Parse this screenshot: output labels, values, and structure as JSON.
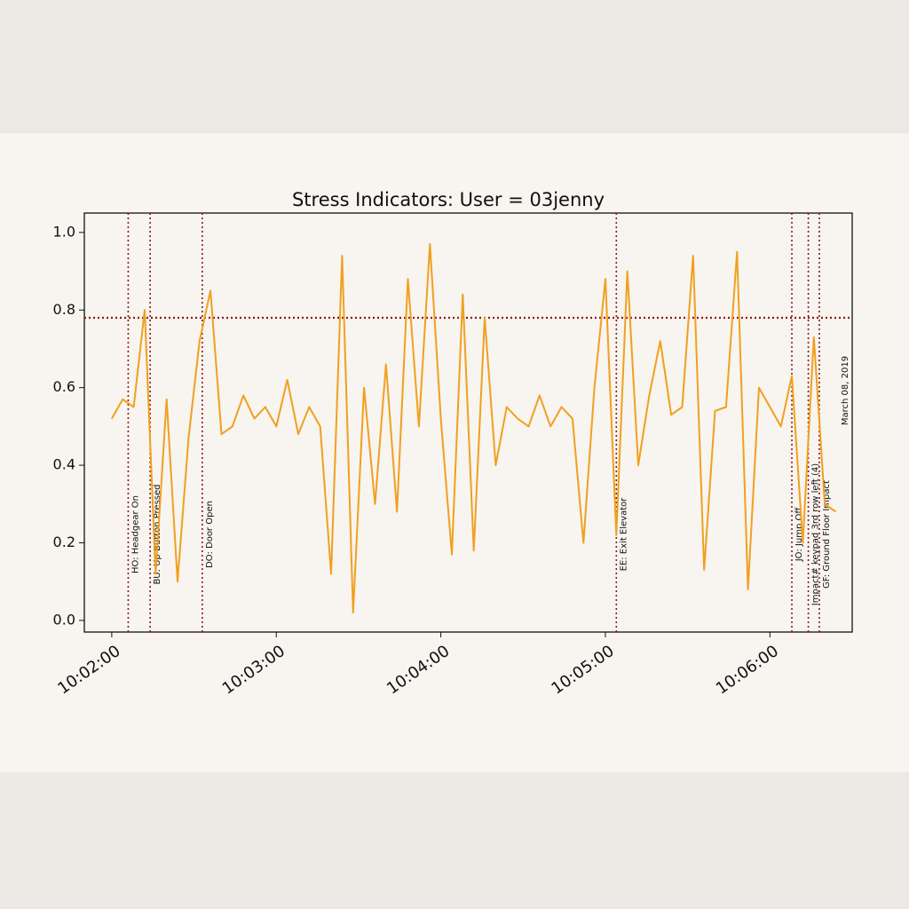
{
  "chart_data": {
    "type": "line",
    "title": "Stress Indicators:  User = 03jenny",
    "side_note": "March 08, 2019",
    "x": [
      "10:02:00",
      "10:02:04",
      "10:02:08",
      "10:02:12",
      "10:02:16",
      "10:02:20",
      "10:02:24",
      "10:02:28",
      "10:02:32",
      "10:02:36",
      "10:02:40",
      "10:02:44",
      "10:02:48",
      "10:02:52",
      "10:02:56",
      "10:03:00",
      "10:03:04",
      "10:03:08",
      "10:03:12",
      "10:03:16",
      "10:03:20",
      "10:03:24",
      "10:03:28",
      "10:03:32",
      "10:03:36",
      "10:03:40",
      "10:03:44",
      "10:03:48",
      "10:03:52",
      "10:03:56",
      "10:04:00",
      "10:04:04",
      "10:04:08",
      "10:04:12",
      "10:04:16",
      "10:04:20",
      "10:04:24",
      "10:04:28",
      "10:04:32",
      "10:04:36",
      "10:04:40",
      "10:04:44",
      "10:04:48",
      "10:04:52",
      "10:04:56",
      "10:05:00",
      "10:05:04",
      "10:05:08",
      "10:05:12",
      "10:05:16",
      "10:05:20",
      "10:05:24",
      "10:05:28",
      "10:05:32",
      "10:05:36",
      "10:05:40",
      "10:05:44",
      "10:05:48",
      "10:05:52",
      "10:05:56",
      "10:06:00",
      "10:06:04",
      "10:06:08",
      "10:06:12",
      "10:06:16",
      "10:06:20",
      "10:06:24"
    ],
    "series": [
      {
        "name": "stress",
        "color": "#f0a020",
        "values": [
          0.52,
          0.57,
          0.55,
          0.8,
          0.12,
          0.57,
          0.1,
          0.47,
          0.72,
          0.85,
          0.48,
          0.5,
          0.58,
          0.52,
          0.55,
          0.5,
          0.62,
          0.48,
          0.55,
          0.5,
          0.12,
          0.94,
          0.02,
          0.6,
          0.3,
          0.66,
          0.28,
          0.88,
          0.5,
          0.97,
          0.52,
          0.17,
          0.84,
          0.18,
          0.78,
          0.4,
          0.55,
          0.52,
          0.5,
          0.58,
          0.5,
          0.55,
          0.52,
          0.2,
          0.6,
          0.88,
          0.22,
          0.9,
          0.4,
          0.58,
          0.72,
          0.53,
          0.55,
          0.94,
          0.13,
          0.54,
          0.55,
          0.95,
          0.08,
          0.6,
          0.55,
          0.5,
          0.63,
          0.2,
          0.73,
          0.3,
          0.28
        ]
      }
    ],
    "xlim": [
      "10:01:50",
      "10:06:30"
    ],
    "xticks": [
      "10:02:00",
      "10:03:00",
      "10:04:00",
      "10:05:00",
      "10:06:00"
    ],
    "ylim": [
      -0.03,
      1.05
    ],
    "yticks": [
      {
        "value": 0,
        "label": "0.0"
      },
      0.2,
      0.4,
      0.6,
      0.8,
      {
        "value": 1,
        "label": "1.0"
      }
    ],
    "threshold": {
      "value": 0.78,
      "color": "#8b1a1a"
    },
    "events": [
      {
        "x": "10:02:06",
        "label": "HO: Headgear On"
      },
      {
        "x": "10:02:14",
        "label": "BU: Up Button Pressed"
      },
      {
        "x": "10:02:33",
        "label": "DO: Door Open"
      },
      {
        "x": "10:05:04",
        "label": "EE: Exit Elevator"
      },
      {
        "x": "10:06:08",
        "label": "JO: Jump Off"
      },
      {
        "x": "10:06:14",
        "label": "Impact# keypad 3rd row left (4)"
      },
      {
        "x": "10:06:18",
        "label": "GF: Ground Floor Impact"
      }
    ],
    "event_color": "#8b1a1a"
  }
}
